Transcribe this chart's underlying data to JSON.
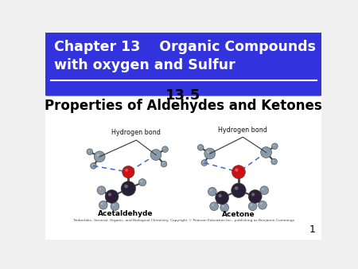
{
  "bg_color": "#f0f0f0",
  "header_bg": "#3333dd",
  "header_text_color": "#ffffff",
  "header_border_color": "#cc7700",
  "title_line1": "13.5",
  "title_line2": "Properties of Aldehydes and Ketones",
  "title_color": "#000000",
  "slide_border_color": "#cc7700",
  "slide_bg": "#ffffff",
  "page_number": "1",
  "copyright": "Timberlake, General, Organic, and Biological Chemistry. Copyright © Pearson Education Inc., publishing as Benjamin Cummings",
  "label_acetaldehyde": "Acetaldehyde",
  "label_acetone": "Acetone",
  "label_hbond": "Hydrogen bond",
  "col_C": "#2a2035",
  "col_O": "#cc1111",
  "col_H": "#8899aa",
  "col_Ow": "#8899aa"
}
